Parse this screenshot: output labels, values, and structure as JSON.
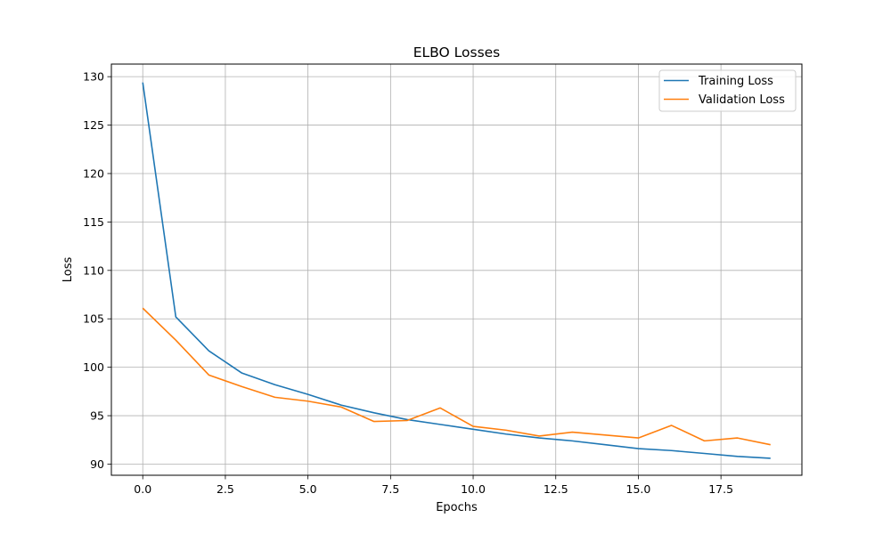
{
  "chart_data": {
    "type": "line",
    "title": "ELBO Losses",
    "xlabel": "Epochs",
    "ylabel": "Loss",
    "xlim": [
      -0.95,
      19.95
    ],
    "ylim": [
      88.85,
      131.3
    ],
    "xticks": [
      0,
      2.5,
      5,
      7.5,
      10,
      12.5,
      15,
      17.5
    ],
    "xtick_labels": [
      "0.0",
      "2.5",
      "5.0",
      "7.5",
      "10.0",
      "12.5",
      "15.0",
      "17.5"
    ],
    "yticks": [
      90,
      95,
      100,
      105,
      110,
      115,
      120,
      125,
      130
    ],
    "ytick_labels": [
      "90",
      "95",
      "100",
      "105",
      "110",
      "115",
      "120",
      "125",
      "130"
    ],
    "grid": true,
    "legend_position": "upper right",
    "x": [
      0,
      1,
      2,
      3,
      4,
      5,
      6,
      7,
      8,
      9,
      10,
      11,
      12,
      13,
      14,
      15,
      16,
      17,
      18,
      19
    ],
    "series": [
      {
        "name": "Training Loss",
        "color": "#1f77b4",
        "values": [
          129.4,
          105.2,
          101.7,
          99.4,
          98.2,
          97.2,
          96.1,
          95.3,
          94.6,
          94.1,
          93.6,
          93.1,
          92.7,
          92.4,
          92.0,
          91.6,
          91.4,
          91.1,
          90.8,
          90.6
        ]
      },
      {
        "name": "Validation Loss",
        "color": "#ff7f0e",
        "values": [
          106.1,
          102.8,
          99.2,
          98.0,
          96.9,
          96.5,
          95.9,
          94.4,
          94.5,
          95.8,
          93.9,
          93.5,
          92.9,
          93.3,
          93.0,
          92.7,
          94.0,
          92.4,
          92.7,
          92.0
        ]
      }
    ]
  }
}
